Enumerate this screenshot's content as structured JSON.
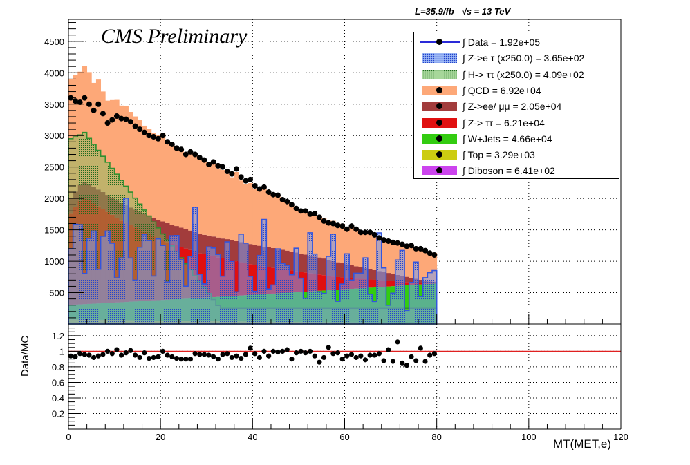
{
  "header": {
    "lumi_text": "L=35.9/fb",
    "energy_text": "√s = 13 TeV",
    "experiment_text": "CMS Preliminary"
  },
  "legend": [
    {
      "label": "∫ Data = 1.92e+05",
      "color": "#000000",
      "style": "marker-line"
    },
    {
      "label": "∫ Z->e τ (x250.0) = 3.65e+02",
      "color": "#6f94e8",
      "style": "hatch"
    },
    {
      "label": "∫ H-> ττ (x250.0) = 4.09e+02",
      "color": "#2f8f2f",
      "style": "hatch"
    },
    {
      "label": "∫ QCD = 6.92e+04",
      "color": "#fda878",
      "style": "fill"
    },
    {
      "label": "∫ Z->ee/ μμ = 2.05e+04",
      "color": "#a23c3c",
      "style": "fill"
    },
    {
      "label": "∫ Z-> ττ = 6.21e+04",
      "color": "#e01010",
      "style": "fill"
    },
    {
      "label": "∫ W+Jets = 4.66e+04",
      "color": "#33cc11",
      "style": "fill"
    },
    {
      "label": "∫ Top = 3.29e+03",
      "color": "#cccc11",
      "style": "fill"
    },
    {
      "label": "∫ Diboson = 6.41e+02",
      "color": "#cc44ee",
      "style": "fill"
    }
  ],
  "chart_data": {
    "type": "bar",
    "xlabel": "MT(MET,e)",
    "ylabel": "",
    "ratio_ylabel": "Data/MC",
    "xlim": [
      0,
      120
    ],
    "ylim": [
      0,
      4850
    ],
    "ratio_ylim": [
      0,
      1.35
    ],
    "x_ticks": [
      0,
      20,
      40,
      60,
      80,
      100,
      120
    ],
    "y_ticks": [
      500,
      1000,
      1500,
      2000,
      2500,
      3000,
      3500,
      4000,
      4500
    ],
    "ratio_y_ticks": [
      0.2,
      0.4,
      0.6,
      0.8,
      1,
      1.2
    ],
    "grid": true,
    "legend_position": "top-right",
    "bin_width": 1,
    "bin_start": 0,
    "data_points_y": [
      3600,
      3550,
      3530,
      3600,
      3500,
      3400,
      3500,
      3350,
      3200,
      3250,
      3310,
      3270,
      3260,
      3220,
      3150,
      3100,
      3050,
      3000,
      2980,
      2950,
      3000,
      2900,
      2860,
      2800,
      2780,
      2700,
      2740,
      2700,
      2650,
      2610,
      2540,
      2580,
      2520,
      2500,
      2430,
      2390,
      2470,
      2340,
      2280,
      2300,
      2200,
      2150,
      2180,
      2100,
      2060,
      2050,
      1980,
      1950,
      1900,
      1840,
      1800,
      1800,
      1750,
      1760,
      1700,
      1640,
      1610,
      1600,
      1570,
      1560,
      1510,
      1560,
      1510,
      1460,
      1460,
      1460,
      1420,
      1370,
      1340,
      1320,
      1300,
      1290,
      1270,
      1240,
      1250,
      1200,
      1200,
      1170,
      1130,
      1100
    ],
    "ratio_values": [
      0.94,
      0.93,
      0.97,
      0.96,
      0.95,
      0.92,
      0.94,
      0.96,
      1.0,
      0.97,
      1.02,
      0.95,
      0.98,
      1.01,
      0.95,
      0.92,
      0.98,
      0.91,
      0.92,
      0.93,
      1.0,
      0.95,
      0.93,
      0.91,
      0.9,
      0.9,
      0.9,
      0.97,
      0.96,
      0.96,
      0.95,
      0.93,
      0.9,
      0.96,
      0.97,
      0.92,
      0.94,
      0.91,
      0.96,
      1.04,
      0.97,
      0.92,
      1.0,
      0.94,
      1.0,
      0.99,
      1.0,
      1.02,
      0.9,
      0.98,
      1.0,
      0.98,
      1.0,
      0.94,
      0.86,
      0.92,
      1.05,
      0.97,
      0.98,
      0.9,
      0.94,
      0.96,
      0.92,
      0.94,
      0.89,
      0.95,
      0.95,
      0.97,
      0.88,
      1.02,
      0.87,
      1.12,
      0.85,
      0.82,
      0.93,
      0.88,
      1.04,
      0.87,
      0.95,
      0.97
    ],
    "series": [
      {
        "name": "Diboson",
        "color": "#cc44ee",
        "values": [
          15,
          14,
          14,
          13,
          13,
          13,
          12,
          12,
          12,
          12,
          11,
          11,
          11,
          11,
          10,
          10,
          10,
          10,
          10,
          9,
          9,
          9,
          9,
          9,
          9,
          8,
          8,
          8,
          8,
          8,
          8,
          8,
          7,
          7,
          7,
          7,
          7,
          7,
          7,
          7,
          6,
          6,
          6,
          6,
          6,
          6,
          6,
          6,
          6,
          6,
          5,
          5,
          5,
          5,
          5,
          5,
          5,
          5,
          5,
          5,
          5,
          4,
          4,
          4,
          4,
          4,
          4,
          4,
          4,
          4,
          4,
          4,
          4,
          4,
          4,
          4,
          4,
          3,
          3,
          3
        ]
      },
      {
        "name": "Top",
        "color": "#cccc11",
        "values": [
          60,
          60,
          58,
          58,
          57,
          56,
          55,
          55,
          54,
          53,
          52,
          51,
          50,
          50,
          49,
          48,
          47,
          46,
          46,
          45,
          44,
          43,
          43,
          42,
          41,
          40,
          40,
          39,
          38,
          38,
          37,
          36,
          36,
          35,
          35,
          34,
          33,
          33,
          32,
          32,
          31,
          31,
          30,
          30,
          29,
          29,
          28,
          28,
          27,
          27,
          26,
          26,
          25,
          25,
          25,
          24,
          24,
          23,
          23,
          23,
          22,
          22,
          21,
          21,
          21,
          20,
          20,
          20,
          19,
          19,
          19,
          18,
          18,
          18,
          17,
          17,
          17,
          17,
          16,
          16
        ]
      },
      {
        "name": "W+Jets",
        "color": "#33cc11",
        "values": [
          230,
          235,
          240,
          245,
          250,
          255,
          260,
          265,
          270,
          275,
          280,
          285,
          290,
          295,
          300,
          305,
          310,
          315,
          320,
          325,
          330,
          335,
          340,
          345,
          350,
          355,
          360,
          365,
          370,
          375,
          380,
          385,
          390,
          395,
          400,
          405,
          410,
          415,
          420,
          425,
          430,
          435,
          440,
          445,
          450,
          455,
          460,
          465,
          470,
          475,
          480,
          485,
          490,
          495,
          500,
          505,
          510,
          515,
          520,
          525,
          530,
          535,
          540,
          545,
          550,
          555,
          560,
          565,
          570,
          575,
          580,
          585,
          590,
          595,
          600,
          605,
          610,
          615,
          620,
          625
        ]
      },
      {
        "name": "Z-> ττ",
        "color": "#e01010",
        "values": [
          1450,
          1550,
          1650,
          1680,
          1650,
          1600,
          1550,
          1500,
          1450,
          1400,
          1350,
          1300,
          1260,
          1220,
          1180,
          1140,
          1100,
          1060,
          1020,
          980,
          950,
          920,
          890,
          860,
          830,
          800,
          770,
          740,
          710,
          690,
          670,
          650,
          630,
          610,
          590,
          570,
          550,
          530,
          510,
          490,
          470,
          455,
          440,
          425,
          410,
          395,
          380,
          365,
          350,
          335,
          320,
          305,
          290,
          275,
          260,
          245,
          230,
          215,
          200,
          190,
          180,
          170,
          160,
          150,
          140,
          130,
          120,
          110,
          100,
          90,
          80,
          70,
          60,
          50,
          40,
          30,
          20,
          10,
          5,
          5
        ]
      },
      {
        "name": "Z->ee/ μμ",
        "color": "#a23c3c",
        "values": [
          250,
          250,
          255,
          260,
          260,
          265,
          265,
          270,
          270,
          275,
          275,
          280,
          280,
          280,
          285,
          285,
          290,
          290,
          295,
          295,
          300,
          300,
          300,
          305,
          305,
          305,
          310,
          310,
          310,
          310,
          315,
          315,
          315,
          315,
          320,
          320,
          320,
          320,
          320,
          320,
          320,
          320,
          315,
          315,
          315,
          310,
          310,
          305,
          300,
          295,
          290,
          285,
          280,
          275,
          270,
          265,
          255,
          245,
          235,
          225,
          215,
          205,
          195,
          185,
          175,
          165,
          155,
          145,
          135,
          125,
          115,
          105,
          95,
          85,
          75,
          65,
          55,
          45,
          35,
          25
        ]
      },
      {
        "name": "QCD",
        "color": "#fda878",
        "values": [
          1900,
          1850,
          1800,
          1850,
          1780,
          1650,
          1750,
          1600,
          1500,
          1550,
          1600,
          1550,
          1580,
          1520,
          1480,
          1460,
          1400,
          1380,
          1350,
          1350,
          1400,
          1300,
          1280,
          1250,
          1250,
          1180,
          1230,
          1220,
          1180,
          1160,
          1100,
          1150,
          1100,
          1090,
          1040,
          1000,
          1100,
          980,
          940,
          970,
          900,
          880,
          920,
          860,
          830,
          840,
          790,
          780,
          750,
          710,
          700,
          710,
          680,
          700,
          670,
          640,
          620,
          640,
          620,
          620,
          590,
          640,
          610,
          570,
          580,
          600,
          570,
          540,
          520,
          520,
          510,
          510,
          500,
          490,
          510,
          480,
          490,
          490,
          470,
          460
        ]
      }
    ]
  }
}
